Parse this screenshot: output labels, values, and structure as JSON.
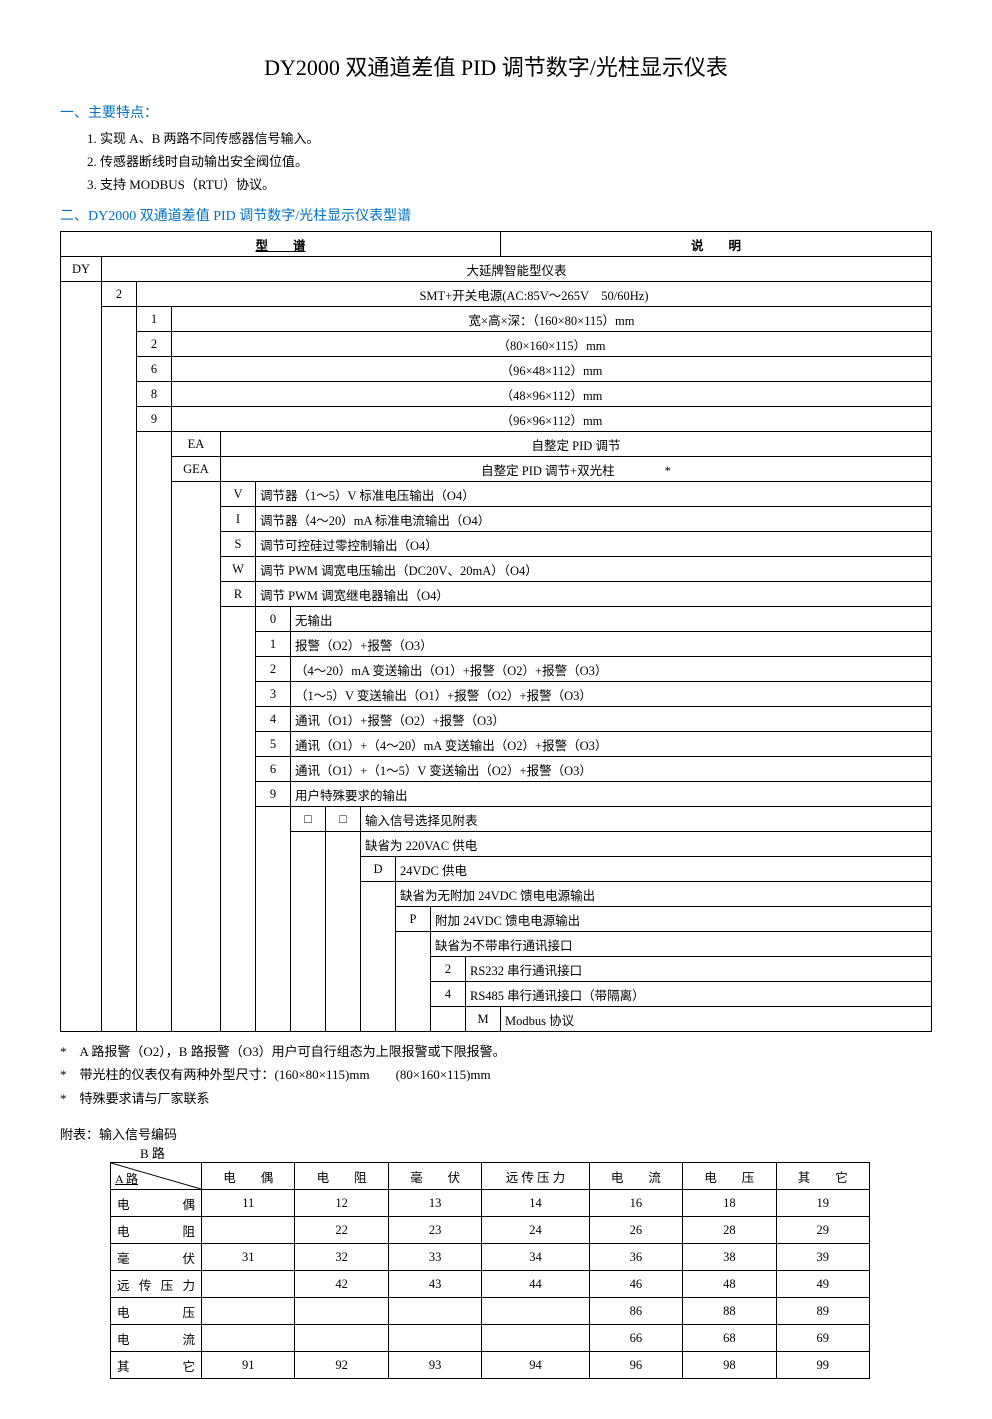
{
  "title": "DY2000 双通道差值 PID 调节数字/光柱显示仪表",
  "section1_title": "一、主要特点：",
  "features": [
    "实现 A、B 两路不同传感器信号输入。",
    "传感器断线时自动输出安全阀位值。",
    "支持 MODBUS（RTU）协议。"
  ],
  "section2_title": "二、DY2000 双通道差值 PID 调节数字/光柱显示仪表型谱",
  "table_header_left": "型　　谱",
  "table_header_right": "说　　明",
  "spec_rows": [
    {
      "codes": [
        "DY",
        "",
        "",
        "",
        "",
        "",
        "",
        "",
        "",
        "",
        "",
        ""
      ],
      "desc": "大延牌智能型仪表"
    },
    {
      "codes": [
        "",
        "2",
        "",
        "",
        "",
        "",
        "",
        "",
        "",
        "",
        "",
        ""
      ],
      "desc": "SMT+开关电源(AC:85V～265V　50/60Hz)"
    },
    {
      "codes": [
        "",
        "",
        "1",
        "",
        "",
        "",
        "",
        "",
        "",
        "",
        "",
        ""
      ],
      "desc": "宽×高×深：（160×80×115）mm"
    },
    {
      "codes": [
        "",
        "",
        "2",
        "",
        "",
        "",
        "",
        "",
        "",
        "",
        "",
        ""
      ],
      "desc": "（80×160×115）mm"
    },
    {
      "codes": [
        "",
        "",
        "6",
        "",
        "",
        "",
        "",
        "",
        "",
        "",
        "",
        ""
      ],
      "desc": "（96×48×112）mm"
    },
    {
      "codes": [
        "",
        "",
        "8",
        "",
        "",
        "",
        "",
        "",
        "",
        "",
        "",
        ""
      ],
      "desc": "（48×96×112）mm"
    },
    {
      "codes": [
        "",
        "",
        "9",
        "",
        "",
        "",
        "",
        "",
        "",
        "",
        "",
        ""
      ],
      "desc": "（96×96×112）mm"
    },
    {
      "codes": [
        "",
        "",
        "",
        "EA",
        "",
        "",
        "",
        "",
        "",
        "",
        "",
        ""
      ],
      "desc": "自整定 PID 调节"
    },
    {
      "codes": [
        "",
        "",
        "",
        "GEA",
        "",
        "",
        "",
        "",
        "",
        "",
        "",
        ""
      ],
      "desc": "自整定 PID 调节+双光柱　　　　*"
    },
    {
      "codes": [
        "",
        "",
        "",
        "",
        "V",
        "",
        "",
        "",
        "",
        "",
        "",
        ""
      ],
      "desc": "调节器（1～5）V 标准电压输出（O4）"
    },
    {
      "codes": [
        "",
        "",
        "",
        "",
        "I",
        "",
        "",
        "",
        "",
        "",
        "",
        ""
      ],
      "desc": "调节器（4～20）mA 标准电流输出（O4）"
    },
    {
      "codes": [
        "",
        "",
        "",
        "",
        "S",
        "",
        "",
        "",
        "",
        "",
        "",
        ""
      ],
      "desc": "调节可控硅过零控制输出（O4）"
    },
    {
      "codes": [
        "",
        "",
        "",
        "",
        "W",
        "",
        "",
        "",
        "",
        "",
        "",
        ""
      ],
      "desc": "调节 PWM 调宽电压输出（DC20V、20mA）（O4）"
    },
    {
      "codes": [
        "",
        "",
        "",
        "",
        "R",
        "",
        "",
        "",
        "",
        "",
        "",
        ""
      ],
      "desc": "调节 PWM 调宽继电器输出（O4）"
    },
    {
      "codes": [
        "",
        "",
        "",
        "",
        "",
        "0",
        "",
        "",
        "",
        "",
        "",
        ""
      ],
      "desc": "无输出"
    },
    {
      "codes": [
        "",
        "",
        "",
        "",
        "",
        "1",
        "",
        "",
        "",
        "",
        "",
        ""
      ],
      "desc": "报警（O2）+报警（O3）"
    },
    {
      "codes": [
        "",
        "",
        "",
        "",
        "",
        "2",
        "",
        "",
        "",
        "",
        "",
        ""
      ],
      "desc": "（4～20）mA 变送输出（O1）+报警（O2）+报警（O3）"
    },
    {
      "codes": [
        "",
        "",
        "",
        "",
        "",
        "3",
        "",
        "",
        "",
        "",
        "",
        ""
      ],
      "desc": "（1～5）V 变送输出（O1）+报警（O2）+报警（O3）"
    },
    {
      "codes": [
        "",
        "",
        "",
        "",
        "",
        "4",
        "",
        "",
        "",
        "",
        "",
        ""
      ],
      "desc": "通讯（O1）+报警（O2）+报警（O3）"
    },
    {
      "codes": [
        "",
        "",
        "",
        "",
        "",
        "5",
        "",
        "",
        "",
        "",
        "",
        ""
      ],
      "desc": "通讯（O1）+（4～20）mA 变送输出（O2）+报警（O3）"
    },
    {
      "codes": [
        "",
        "",
        "",
        "",
        "",
        "6",
        "",
        "",
        "",
        "",
        "",
        ""
      ],
      "desc": "通讯（O1）+（1～5）V 变送输出（O2）+报警（O3）"
    },
    {
      "codes": [
        "",
        "",
        "",
        "",
        "",
        "9",
        "",
        "",
        "",
        "",
        "",
        ""
      ],
      "desc": "用户特殊要求的输出"
    },
    {
      "codes": [
        "",
        "",
        "",
        "",
        "",
        "",
        "□",
        "□",
        "",
        "",
        "",
        ""
      ],
      "desc": "输入信号选择见附表"
    },
    {
      "codes": [
        "",
        "",
        "",
        "",
        "",
        "",
        "",
        "",
        "",
        "",
        "",
        ""
      ],
      "desc": "缺省为 220VAC 供电"
    },
    {
      "codes": [
        "",
        "",
        "",
        "",
        "",
        "",
        "",
        "",
        "D",
        "",
        "",
        ""
      ],
      "desc": "24VDC 供电"
    },
    {
      "codes": [
        "",
        "",
        "",
        "",
        "",
        "",
        "",
        "",
        "",
        "",
        "",
        ""
      ],
      "desc": "缺省为无附加 24VDC 馈电电源输出"
    },
    {
      "codes": [
        "",
        "",
        "",
        "",
        "",
        "",
        "",
        "",
        "",
        "P",
        "",
        ""
      ],
      "desc": "附加 24VDC 馈电电源输出"
    },
    {
      "codes": [
        "",
        "",
        "",
        "",
        "",
        "",
        "",
        "",
        "",
        "",
        "",
        ""
      ],
      "desc": "缺省为不带串行通讯接口"
    },
    {
      "codes": [
        "",
        "",
        "",
        "",
        "",
        "",
        "",
        "",
        "",
        "",
        "2",
        ""
      ],
      "desc": "RS232 串行通讯接口"
    },
    {
      "codes": [
        "",
        "",
        "",
        "",
        "",
        "",
        "",
        "",
        "",
        "",
        "4",
        ""
      ],
      "desc": "RS485 串行通讯接口（带隔离）"
    },
    {
      "codes": [
        "",
        "",
        "",
        "",
        "",
        "",
        "",
        "",
        "",
        "",
        "",
        "M"
      ],
      "desc": "Modbus 协议"
    }
  ],
  "col_widths": [
    "32",
    "26",
    "26",
    "40",
    "26",
    "26",
    "26",
    "26",
    "26",
    "26",
    "26",
    "26"
  ],
  "notes": [
    "*　A 路报警（O2），B 路报警（O3）用户可自行组态为上限报警或下限报警。",
    "*　带光柱的仪表仅有两种外型尺寸：(160×80×115)mm　　(80×160×115)mm",
    "*　特殊要求请与厂家联系"
  ],
  "appendix_label": "附表：输入信号编码",
  "b_label": "B 路",
  "a_label": "A 路",
  "signal_cols": [
    "电　　偶",
    "电　　阻",
    "毫　　伏",
    "远 传 压 力",
    "电　　流",
    "电　　压",
    "其　　它"
  ],
  "signal_rows": [
    {
      "hdr": "电　　　偶",
      "cells": [
        "11",
        "12",
        "13",
        "14",
        "16",
        "18",
        "19"
      ]
    },
    {
      "hdr": "电　　　阻",
      "cells": [
        "",
        "22",
        "23",
        "24",
        "26",
        "28",
        "29"
      ]
    },
    {
      "hdr": "毫　　　伏",
      "cells": [
        "31",
        "32",
        "33",
        "34",
        "36",
        "38",
        "39"
      ]
    },
    {
      "hdr": "远 传 压 力",
      "cells": [
        "",
        "42",
        "43",
        "44",
        "46",
        "48",
        "49"
      ]
    },
    {
      "hdr": "电　　　压",
      "cells": [
        "",
        "",
        "",
        "",
        "86",
        "88",
        "89"
      ]
    },
    {
      "hdr": "电　　　流",
      "cells": [
        "",
        "",
        "",
        "",
        "66",
        "68",
        "69"
      ]
    },
    {
      "hdr": "其　　　它",
      "cells": [
        "91",
        "92",
        "93",
        "94",
        "96",
        "98",
        "99"
      ]
    }
  ]
}
